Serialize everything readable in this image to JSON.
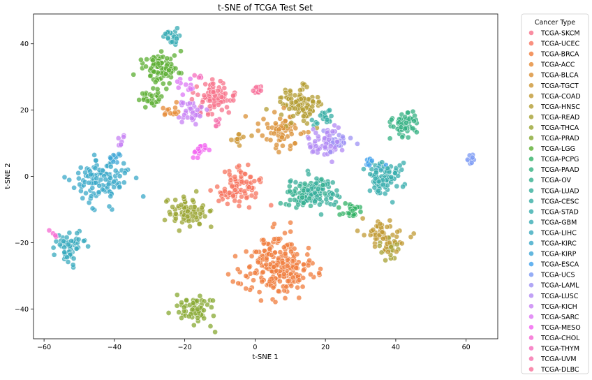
{
  "chart_data": {
    "type": "scatter",
    "title": "t-SNE of TCGA Test Set",
    "xlabel": "t-SNE 1",
    "ylabel": "t-SNE 2",
    "xlim": [
      -63,
      69
    ],
    "ylim": [
      -49,
      49
    ],
    "xticks": [
      -60,
      -40,
      -20,
      0,
      20,
      40,
      60
    ],
    "yticks": [
      -40,
      -20,
      0,
      20,
      40
    ],
    "grid": false,
    "legend": {
      "title": "Cancer Type",
      "placement": "outside-right"
    },
    "series": [
      {
        "name": "TCGA-SKCM",
        "color": "#f77189",
        "clusters": [
          {
            "x": -12,
            "y": 23,
            "sd": 2.6,
            "n": 80
          }
        ]
      },
      {
        "name": "TCGA-UCEC",
        "color": "#f7745f",
        "clusters": [
          {
            "x": -5,
            "y": -3,
            "sd": 3,
            "n": 90
          }
        ]
      },
      {
        "name": "TCGA-BRCA",
        "color": "#f07c3c",
        "clusters": [
          {
            "x": 6,
            "y": -27,
            "sd": 4.3,
            "n": 230
          }
        ]
      },
      {
        "name": "TCGA-ACC",
        "color": "#e58935",
        "clusters": [
          {
            "x": -24,
            "y": 20,
            "sd": 1.3,
            "n": 12
          }
        ]
      },
      {
        "name": "TCGA-BLCA",
        "color": "#d98f34",
        "clusters": [
          {
            "x": 7.5,
            "y": 13,
            "sd": 3,
            "n": 60
          }
        ]
      },
      {
        "name": "TCGA-TGCT",
        "color": "#cc9533",
        "clusters": [
          {
            "x": -4,
            "y": 11,
            "sd": 1.2,
            "n": 12
          }
        ]
      },
      {
        "name": "TCGA-COAD",
        "color": "#c09933",
        "clusters": [
          {
            "x": 37,
            "y": -18,
            "sd": 2.6,
            "n": 55
          }
        ]
      },
      {
        "name": "TCGA-HNSC",
        "color": "#b39c32",
        "clusters": [
          {
            "x": 12.5,
            "y": 21.5,
            "sd": 2.8,
            "n": 100
          }
        ]
      },
      {
        "name": "TCGA-READ",
        "color": "#a6a032",
        "clusters": [
          {
            "x": 38,
            "y": -22,
            "sd": 1.5,
            "n": 20
          }
        ]
      },
      {
        "name": "TCGA-THCA",
        "color": "#99a431",
        "clusters": [
          {
            "x": -19,
            "y": -11,
            "sd": 2.5,
            "n": 75
          }
        ]
      },
      {
        "name": "TCGA-PRAD",
        "color": "#87a831",
        "clusters": [
          {
            "x": -16.5,
            "y": -40,
            "sd": 2.3,
            "n": 70
          }
        ]
      },
      {
        "name": "TCGA-LGG",
        "color": "#5bae31",
        "clusters": [
          {
            "x": -27,
            "y": 33,
            "sd": 2.4,
            "n": 90
          },
          {
            "x": -30,
            "y": 23.5,
            "sd": 1.6,
            "n": 25
          }
        ]
      },
      {
        "name": "TCGA-PCPG",
        "color": "#32b166",
        "clusters": [
          {
            "x": 27,
            "y": -10,
            "sd": 1.5,
            "n": 25
          }
        ]
      },
      {
        "name": "TCGA-PAAD",
        "color": "#33b081",
        "clusters": [
          {
            "x": 42,
            "y": 15.5,
            "sd": 2.1,
            "n": 55
          }
        ]
      },
      {
        "name": "TCGA-OV",
        "color": "#34af8f",
        "clusters": [
          {
            "x": 13,
            "y": -5,
            "sd": 2.5,
            "n": 60
          }
        ]
      },
      {
        "name": "TCGA-LUAD",
        "color": "#35ae9b",
        "clusters": [
          {
            "x": 18,
            "y": -5,
            "sd": 2.5,
            "n": 70
          }
        ]
      },
      {
        "name": "TCGA-CESC",
        "color": "#36ada4",
        "clusters": [
          {
            "x": 20,
            "y": 17.5,
            "sd": 1.5,
            "n": 20
          }
        ]
      },
      {
        "name": "TCGA-STAD",
        "color": "#36acac",
        "clusters": [
          {
            "x": 37,
            "y": 0,
            "sd": 2.6,
            "n": 85
          }
        ]
      },
      {
        "name": "TCGA-GBM",
        "color": "#37abb4",
        "clusters": [
          {
            "x": -23.5,
            "y": 42,
            "sd": 1.2,
            "n": 25
          }
        ]
      },
      {
        "name": "TCGA-LIHC",
        "color": "#38a9bd",
        "clusters": [
          {
            "x": -53,
            "y": -21,
            "sd": 2,
            "n": 55
          }
        ]
      },
      {
        "name": "TCGA-KIRC",
        "color": "#3aa8c8",
        "clusters": [
          {
            "x": -43,
            "y": -1,
            "sd": 3.5,
            "n": 110
          }
        ]
      },
      {
        "name": "TCGA-KIRP",
        "color": "#3ca5d6",
        "clusters": [
          {
            "x": -40.5,
            "y": 5,
            "sd": 1,
            "n": 12
          }
        ]
      },
      {
        "name": "TCGA-ESCA",
        "color": "#3fa0ec",
        "clusters": [
          {
            "x": 33.5,
            "y": 4,
            "sd": 1.2,
            "n": 12
          }
        ]
      },
      {
        "name": "TCGA-UCS",
        "color": "#7a98f4",
        "clusters": [
          {
            "x": 61.5,
            "y": 5,
            "sd": 0.6,
            "n": 12
          }
        ]
      },
      {
        "name": "TCGA-LAML",
        "color": "#9d91f4",
        "clusters": [
          {
            "x": 23,
            "y": 10.5,
            "sd": 1.6,
            "n": 30
          }
        ]
      },
      {
        "name": "TCGA-LUSC",
        "color": "#b18af4",
        "clusters": [
          {
            "x": 20,
            "y": 10,
            "sd": 2.2,
            "n": 60
          }
        ]
      },
      {
        "name": "TCGA-KICH",
        "color": "#c782f4",
        "clusters": [
          {
            "x": -18,
            "y": 20,
            "sd": 2,
            "n": 35
          },
          {
            "x": -38.5,
            "y": 10,
            "sd": 0.8,
            "n": 8
          }
        ]
      },
      {
        "name": "TCGA-SARC",
        "color": "#dc77f4",
        "clusters": [
          {
            "x": -20,
            "y": 27,
            "sd": 1.3,
            "n": 12
          }
        ]
      },
      {
        "name": "TCGA-MESO",
        "color": "#f161f0",
        "clusters": [
          {
            "x": -16,
            "y": 8,
            "sd": 1,
            "n": 14
          }
        ]
      },
      {
        "name": "TCGA-CHOL",
        "color": "#f567d2",
        "clusters": [
          {
            "x": -57,
            "y": -17,
            "sd": 0.8,
            "n": 4
          }
        ]
      },
      {
        "name": "TCGA-THYM",
        "color": "#f66cbc",
        "clusters": [
          {
            "x": -16.5,
            "y": 30,
            "sd": 0.6,
            "n": 4
          }
        ]
      },
      {
        "name": "TCGA-UVM",
        "color": "#f66fab",
        "clusters": [
          {
            "x": -11,
            "y": 16,
            "sd": 1,
            "n": 6
          }
        ]
      },
      {
        "name": "TCGA-DLBC",
        "color": "#f7709a",
        "clusters": [
          {
            "x": 0.5,
            "y": 26,
            "sd": 0.9,
            "n": 12
          }
        ]
      }
    ]
  }
}
